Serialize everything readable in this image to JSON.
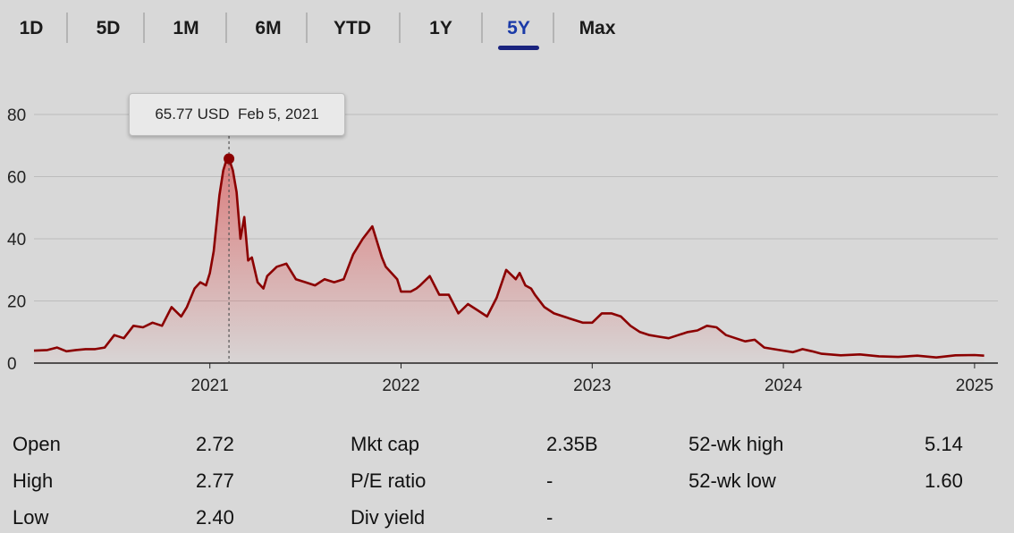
{
  "tabs": [
    "1D",
    "5D",
    "1M",
    "6M",
    "YTD",
    "1Y",
    "5Y",
    "Max"
  ],
  "active_tab": "5Y",
  "tooltip": {
    "price": "65.77 USD",
    "date": "Feb 5, 2021"
  },
  "stats": [
    {
      "label": "Open",
      "value": "2.72"
    },
    {
      "label": "High",
      "value": "2.77"
    },
    {
      "label": "Low",
      "value": "2.40"
    },
    {
      "label": "Mkt cap",
      "value": "2.35B"
    },
    {
      "label": "P/E ratio",
      "value": "-"
    },
    {
      "label": "Div yield",
      "value": "-"
    },
    {
      "label": "52-wk high",
      "value": "5.14"
    },
    {
      "label": "52-wk low",
      "value": "1.60"
    }
  ],
  "colors": {
    "line": "#8b0000",
    "fill": "#d33",
    "active_tab": "#1a237e",
    "background": "#d8d8d8"
  },
  "chart_data": {
    "type": "area",
    "title": "",
    "xlabel": "",
    "ylabel": "",
    "ylim": [
      0,
      80
    ],
    "xlim": [
      2020.08,
      2025.08
    ],
    "y_ticks": [
      0,
      20,
      40,
      60,
      80
    ],
    "x_ticks": [
      2021,
      2022,
      2023,
      2024,
      2025
    ],
    "x_tick_labels": [
      "2021",
      "2022",
      "2023",
      "2024",
      "2025"
    ],
    "grid": true,
    "highlight": {
      "x": 2021.1,
      "y": 65.77
    },
    "x": [
      2020.08,
      2020.15,
      2020.2,
      2020.25,
      2020.3,
      2020.35,
      2020.4,
      2020.45,
      2020.5,
      2020.55,
      2020.6,
      2020.65,
      2020.7,
      2020.75,
      2020.8,
      2020.85,
      2020.88,
      2020.92,
      2020.95,
      2020.98,
      2021.0,
      2021.02,
      2021.05,
      2021.07,
      2021.09,
      2021.1,
      2021.12,
      2021.14,
      2021.16,
      2021.18,
      2021.2,
      2021.22,
      2021.25,
      2021.28,
      2021.3,
      2021.35,
      2021.4,
      2021.45,
      2021.5,
      2021.55,
      2021.6,
      2021.65,
      2021.7,
      2021.75,
      2021.8,
      2021.85,
      2021.88,
      2021.9,
      2021.92,
      2021.95,
      2021.98,
      2022.0,
      2022.05,
      2022.08,
      2022.1,
      2022.15,
      2022.2,
      2022.25,
      2022.3,
      2022.35,
      2022.4,
      2022.45,
      2022.5,
      2022.55,
      2022.6,
      2022.62,
      2022.65,
      2022.68,
      2022.7,
      2022.75,
      2022.8,
      2022.85,
      2022.9,
      2022.95,
      2023.0,
      2023.05,
      2023.1,
      2023.15,
      2023.2,
      2023.25,
      2023.3,
      2023.35,
      2023.4,
      2023.45,
      2023.5,
      2023.55,
      2023.6,
      2023.65,
      2023.7,
      2023.75,
      2023.8,
      2023.85,
      2023.9,
      2023.95,
      2024.0,
      2024.05,
      2024.1,
      2024.15,
      2024.2,
      2024.3,
      2024.4,
      2024.5,
      2024.6,
      2024.7,
      2024.8,
      2024.9,
      2025.0,
      2025.05
    ],
    "y": [
      4,
      4.2,
      5,
      3.8,
      4.2,
      4.5,
      4.5,
      5,
      9,
      8,
      12,
      11.5,
      13,
      12,
      18,
      15,
      18,
      24,
      26,
      25,
      29,
      36,
      54,
      62,
      66,
      65.77,
      62,
      55,
      40,
      47,
      33,
      34,
      26,
      24,
      28,
      31,
      32,
      27,
      26,
      25,
      27,
      26,
      27,
      35,
      40,
      44,
      38,
      34,
      31,
      29,
      27,
      23,
      23,
      24,
      25,
      28,
      22,
      22,
      16,
      19,
      17,
      15,
      21,
      30,
      27,
      29,
      25,
      24,
      22,
      18,
      16,
      15,
      14,
      13,
      13,
      16,
      16,
      15,
      12,
      10,
      9,
      8.5,
      8,
      9,
      10,
      10.5,
      12,
      11.5,
      9,
      8,
      7,
      7.5,
      5,
      4.5,
      4,
      3.5,
      4.5,
      3.8,
      3,
      2.5,
      2.8,
      2.2,
      2,
      2.4,
      1.8,
      2.5,
      2.6,
      2.4
    ]
  }
}
